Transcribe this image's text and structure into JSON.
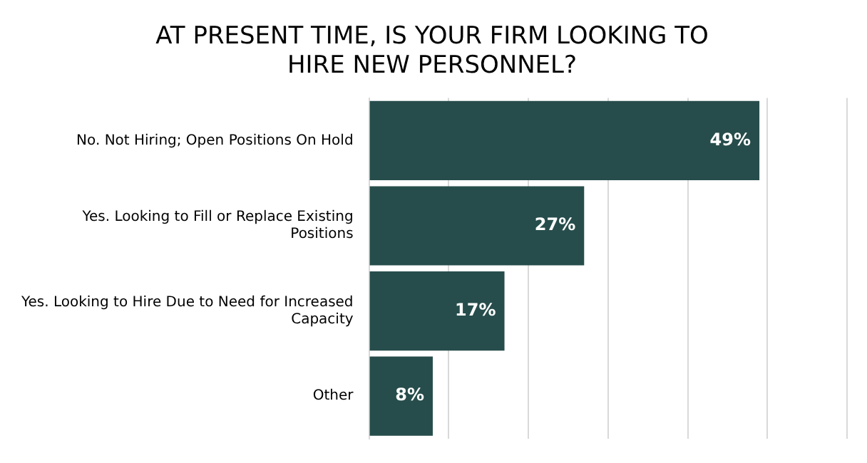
{
  "chart_data": {
    "type": "bar",
    "orientation": "horizontal",
    "title": "AT PRESENT TIME, IS YOUR FIRM LOOKING TO HIRE NEW PERSONNEL?",
    "categories": [
      "No. Not Hiring; Open Positions On Hold",
      "Yes. Looking to Fill or Replace Existing Positions",
      "Yes. Looking to Hire Due to Need for Increased Capacity",
      "Other"
    ],
    "values": [
      49,
      27,
      17,
      8
    ],
    "color": "#264d4b",
    "value_labels": [
      "49%",
      "27%",
      "17%",
      "8%"
    ],
    "xlim": [
      0,
      60
    ],
    "xticks": [
      {
        "value": 0,
        "label": null
      },
      {
        "value": 10,
        "label": null
      },
      {
        "value": 20,
        "label": null
      },
      {
        "value": 30,
        "label": null
      },
      {
        "value": 40,
        "label": null
      },
      {
        "value": 50,
        "label": null
      },
      {
        "value": 60,
        "label": null
      }
    ],
    "grid": "x",
    "legend": false
  }
}
